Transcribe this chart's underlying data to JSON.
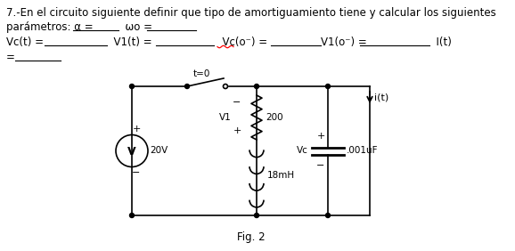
{
  "bg_color": "#ffffff",
  "text_color": "#000000",
  "title_line1": "7.-En el circuito siguiente definir que tipo de amortiguamiento tiene y calcular los siguientes",
  "title_line2_a": "parámetros: α = ",
  "title_line2_b": "          ωo = ",
  "title_line2_c": "          ",
  "line3_parts": [
    "Vc(t) = ",
    "              ",
    "  V1(t) = ",
    "            ",
    "  Vc(o⁻) =",
    "            ",
    "V1(o⁻) = ",
    "              ",
    "I(t)"
  ],
  "line4": "= ",
  "line4_underline": "          ",
  "fig_label": "Fig. 2",
  "circuit": {
    "voltage_source": "20V",
    "resistor_label": "200",
    "inductor_label": "18mH",
    "capacitor_label": ".001uF",
    "v1_label": "V1",
    "vc_label": "Vc",
    "switch_label": "t=0",
    "current_label": "i(t)"
  }
}
